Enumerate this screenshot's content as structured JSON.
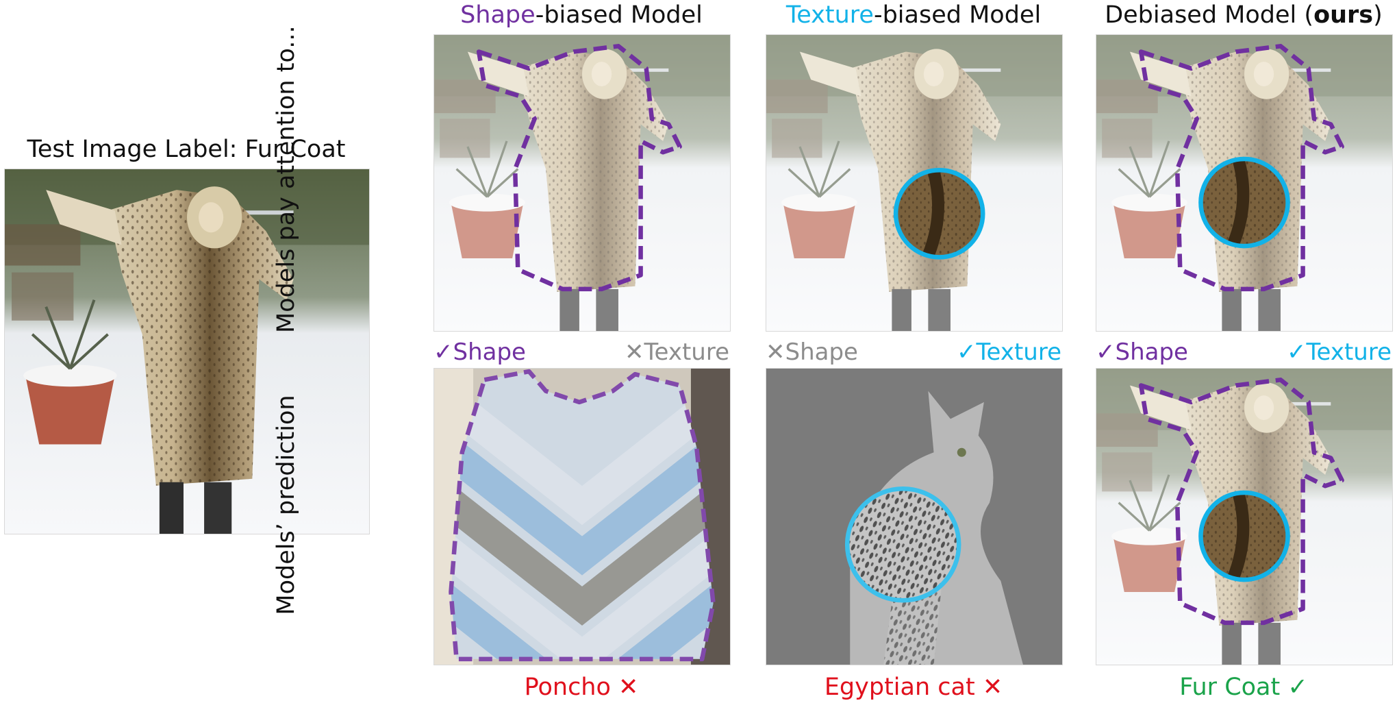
{
  "test_image": {
    "label": "Test Image Label: Fur Coat"
  },
  "row_labels": {
    "attention": "Models pay attention to...",
    "prediction": "Models’ prediction"
  },
  "columns": [
    {
      "head_colored": "Shape",
      "head_rest": "-biased Model",
      "head_color": "#7030a0",
      "tag_left_mark": "✓",
      "tag_left": "Shape",
      "tag_left_color": "#7030a0",
      "tag_right_mark": "✕",
      "tag_right": "Texture",
      "tag_right_color": "#8c8c8c",
      "prediction": "Poncho",
      "prediction_mark": "✕",
      "prediction_color": "#e0101c"
    },
    {
      "head_colored": "Texture",
      "head_rest": "-biased Model",
      "head_color": "#12b2e8",
      "tag_left_mark": "✕",
      "tag_left": "Shape",
      "tag_left_color": "#8c8c8c",
      "tag_right_mark": "✓",
      "tag_right": "Texture",
      "tag_right_color": "#12b2e8",
      "prediction": "Egyptian cat",
      "prediction_mark": "✕",
      "prediction_color": "#e0101c"
    },
    {
      "head_plain": "Debiased Model (",
      "head_bold": "ours",
      "head_close": ")",
      "tag_left_mark": "✓",
      "tag_left": "Shape",
      "tag_left_color": "#7030a0",
      "tag_right_mark": "✓",
      "tag_right": "Texture",
      "tag_right_color": "#12b2e8",
      "prediction": "Fur Coat",
      "prediction_mark": "✓",
      "prediction_color": "#1aa34a"
    }
  ],
  "colors": {
    "shape_outline": "#7030a0",
    "texture_circle": "#12b2e8"
  }
}
